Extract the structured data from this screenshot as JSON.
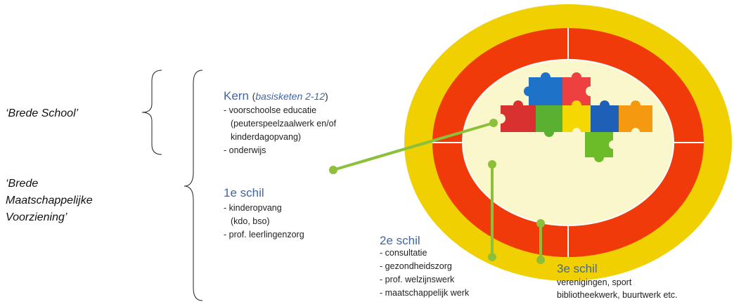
{
  "left_labels": {
    "brede_school": "‘Brede School’",
    "bmv": [
      "‘Brede",
      "Maatschappelijke",
      "Voorziening’"
    ]
  },
  "kern": {
    "title": "Kern",
    "open": "(",
    "subtitle": "basisketen 2-12",
    "close": ")",
    "lines": [
      "- voorschoolse educatie",
      "(peuterspeelzaalwerk en/of",
      "kinderdagopvang)",
      "- onderwijs"
    ]
  },
  "schil1": {
    "title": "1e schil",
    "lines": [
      "- kinderopvang",
      "(kdo, bso)",
      "- prof.  leerlingenzorg"
    ]
  },
  "schil2": {
    "title": "2e schil",
    "lines": [
      "- consultatie",
      "- gezondheidszorg",
      "- prof. welzijnswerk",
      "- maatschappelijk werk"
    ]
  },
  "schil3": {
    "title": "3e schil",
    "lines": [
      "verenigingen, sport",
      "bibliotheekwerk, buurtwerk etc."
    ]
  }
}
